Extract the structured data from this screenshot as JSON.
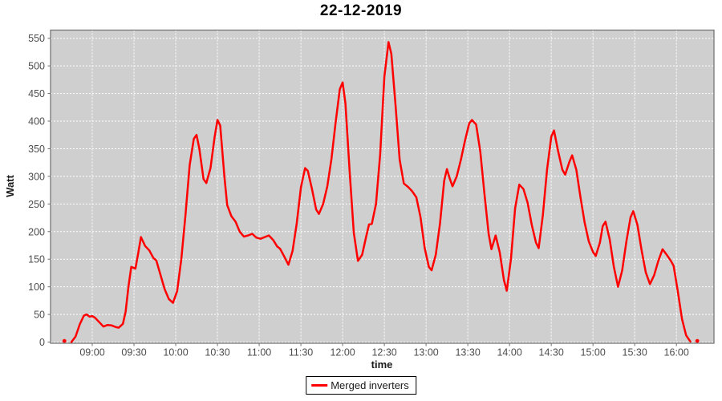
{
  "title": "22-12-2019",
  "legend": {
    "items": [
      {
        "label": "Merged inverters",
        "color": "#ff0000"
      }
    ]
  },
  "colors": {
    "plot_bg": "#cfcfcf",
    "grid": "#ffffff",
    "axis_border": "#6e6e6e",
    "tick_mark": "#6e6e6e",
    "tick_label": "#4d4d4d",
    "series": "#ff0000"
  },
  "chart_data": {
    "type": "line",
    "title": "22-12-2019",
    "xlabel": "time",
    "ylabel": "Watt",
    "x_ticks": [
      "09:00",
      "09:30",
      "10:00",
      "10:30",
      "11:00",
      "11:30",
      "12:00",
      "12:30",
      "13:00",
      "13:30",
      "14:00",
      "14:30",
      "15:00",
      "15:30",
      "16:00"
    ],
    "y_ticks": [
      0,
      50,
      100,
      150,
      200,
      250,
      300,
      350,
      400,
      450,
      500,
      550
    ],
    "x_range": [
      "08:30",
      "16:27"
    ],
    "ylim": [
      0,
      550
    ],
    "grid": "white-dashed",
    "legend_position": "bottom-center",
    "series": [
      {
        "name": "Merged inverters",
        "color": "#ff0000",
        "isolated_points": [
          [
            "08:40",
            2
          ],
          [
            "16:15",
            2
          ]
        ],
        "points": [
          [
            "08:45",
            0
          ],
          [
            "08:48",
            10
          ],
          [
            "08:51",
            32
          ],
          [
            "08:54",
            48
          ],
          [
            "08:56",
            50
          ],
          [
            "08:58",
            46
          ],
          [
            "09:00",
            47
          ],
          [
            "09:02",
            44
          ],
          [
            "09:05",
            36
          ],
          [
            "09:08",
            28
          ],
          [
            "09:11",
            31
          ],
          [
            "09:14",
            30
          ],
          [
            "09:17",
            27
          ],
          [
            "09:19",
            26
          ],
          [
            "09:22",
            33
          ],
          [
            "09:24",
            55
          ],
          [
            "09:26",
            100
          ],
          [
            "09:28",
            136
          ],
          [
            "09:31",
            133
          ],
          [
            "09:33",
            160
          ],
          [
            "09:35",
            190
          ],
          [
            "09:38",
            174
          ],
          [
            "09:41",
            166
          ],
          [
            "09:44",
            152
          ],
          [
            "09:46",
            148
          ],
          [
            "09:49",
            122
          ],
          [
            "09:52",
            96
          ],
          [
            "09:55",
            78
          ],
          [
            "09:58",
            71
          ],
          [
            "10:01",
            92
          ],
          [
            "10:04",
            150
          ],
          [
            "10:07",
            230
          ],
          [
            "10:10",
            320
          ],
          [
            "10:13",
            368
          ],
          [
            "10:15",
            375
          ],
          [
            "10:17",
            350
          ],
          [
            "10:20",
            295
          ],
          [
            "10:22",
            288
          ],
          [
            "10:25",
            315
          ],
          [
            "10:28",
            372
          ],
          [
            "10:30",
            402
          ],
          [
            "10:32",
            392
          ],
          [
            "10:35",
            300
          ],
          [
            "10:37",
            248
          ],
          [
            "10:40",
            228
          ],
          [
            "10:43",
            218
          ],
          [
            "10:46",
            200
          ],
          [
            "10:49",
            191
          ],
          [
            "10:52",
            193
          ],
          [
            "10:55",
            196
          ],
          [
            "10:58",
            189
          ],
          [
            "11:01",
            187
          ],
          [
            "11:04",
            190
          ],
          [
            "11:07",
            193
          ],
          [
            "11:10",
            185
          ],
          [
            "11:13",
            173
          ],
          [
            "11:15",
            169
          ],
          [
            "11:18",
            155
          ],
          [
            "11:21",
            140
          ],
          [
            "11:24",
            165
          ],
          [
            "11:27",
            215
          ],
          [
            "11:30",
            280
          ],
          [
            "11:33",
            315
          ],
          [
            "11:35",
            310
          ],
          [
            "11:38",
            277
          ],
          [
            "11:41",
            240
          ],
          [
            "11:43",
            232
          ],
          [
            "11:46",
            250
          ],
          [
            "11:49",
            282
          ],
          [
            "11:52",
            332
          ],
          [
            "11:55",
            398
          ],
          [
            "11:58",
            458
          ],
          [
            "12:00",
            470
          ],
          [
            "12:02",
            432
          ],
          [
            "12:05",
            310
          ],
          [
            "12:08",
            198
          ],
          [
            "12:11",
            147
          ],
          [
            "12:14",
            158
          ],
          [
            "12:17",
            192
          ],
          [
            "12:19",
            213
          ],
          [
            "12:21",
            214
          ],
          [
            "12:24",
            250
          ],
          [
            "12:27",
            340
          ],
          [
            "12:30",
            480
          ],
          [
            "12:33",
            543
          ],
          [
            "12:35",
            522
          ],
          [
            "12:38",
            430
          ],
          [
            "12:41",
            330
          ],
          [
            "12:44",
            287
          ],
          [
            "12:47",
            281
          ],
          [
            "12:50",
            273
          ],
          [
            "12:53",
            262
          ],
          [
            "12:56",
            226
          ],
          [
            "12:59",
            170
          ],
          [
            "13:02",
            136
          ],
          [
            "13:04",
            130
          ],
          [
            "13:07",
            158
          ],
          [
            "13:10",
            215
          ],
          [
            "13:13",
            292
          ],
          [
            "13:15",
            313
          ],
          [
            "13:17",
            296
          ],
          [
            "13:19",
            282
          ],
          [
            "13:22",
            300
          ],
          [
            "13:25",
            330
          ],
          [
            "13:28",
            365
          ],
          [
            "13:31",
            396
          ],
          [
            "13:33",
            402
          ],
          [
            "13:36",
            394
          ],
          [
            "13:39",
            345
          ],
          [
            "13:42",
            268
          ],
          [
            "13:45",
            196
          ],
          [
            "13:47",
            168
          ],
          [
            "13:50",
            193
          ],
          [
            "13:53",
            162
          ],
          [
            "13:56",
            112
          ],
          [
            "13:58",
            93
          ],
          [
            "14:01",
            150
          ],
          [
            "14:04",
            242
          ],
          [
            "14:07",
            285
          ],
          [
            "14:10",
            277
          ],
          [
            "14:13",
            252
          ],
          [
            "14:16",
            212
          ],
          [
            "14:19",
            180
          ],
          [
            "14:21",
            170
          ],
          [
            "14:24",
            230
          ],
          [
            "14:27",
            312
          ],
          [
            "14:30",
            372
          ],
          [
            "14:32",
            383
          ],
          [
            "14:35",
            345
          ],
          [
            "14:38",
            312
          ],
          [
            "14:40",
            303
          ],
          [
            "14:43",
            326
          ],
          [
            "14:45",
            338
          ],
          [
            "14:48",
            312
          ],
          [
            "14:51",
            262
          ],
          [
            "14:54",
            216
          ],
          [
            "14:57",
            182
          ],
          [
            "15:00",
            163
          ],
          [
            "15:02",
            156
          ],
          [
            "15:05",
            180
          ],
          [
            "15:07",
            210
          ],
          [
            "15:09",
            218
          ],
          [
            "15:12",
            186
          ],
          [
            "15:15",
            136
          ],
          [
            "15:18",
            100
          ],
          [
            "15:21",
            130
          ],
          [
            "15:24",
            182
          ],
          [
            "15:27",
            226
          ],
          [
            "15:29",
            237
          ],
          [
            "15:32",
            212
          ],
          [
            "15:35",
            166
          ],
          [
            "15:38",
            126
          ],
          [
            "15:41",
            105
          ],
          [
            "15:44",
            121
          ],
          [
            "15:47",
            147
          ],
          [
            "15:50",
            168
          ],
          [
            "15:53",
            158
          ],
          [
            "15:56",
            147
          ],
          [
            "15:58",
            138
          ],
          [
            "16:01",
            92
          ],
          [
            "16:04",
            42
          ],
          [
            "16:07",
            12
          ],
          [
            "16:10",
            1
          ]
        ]
      }
    ]
  }
}
